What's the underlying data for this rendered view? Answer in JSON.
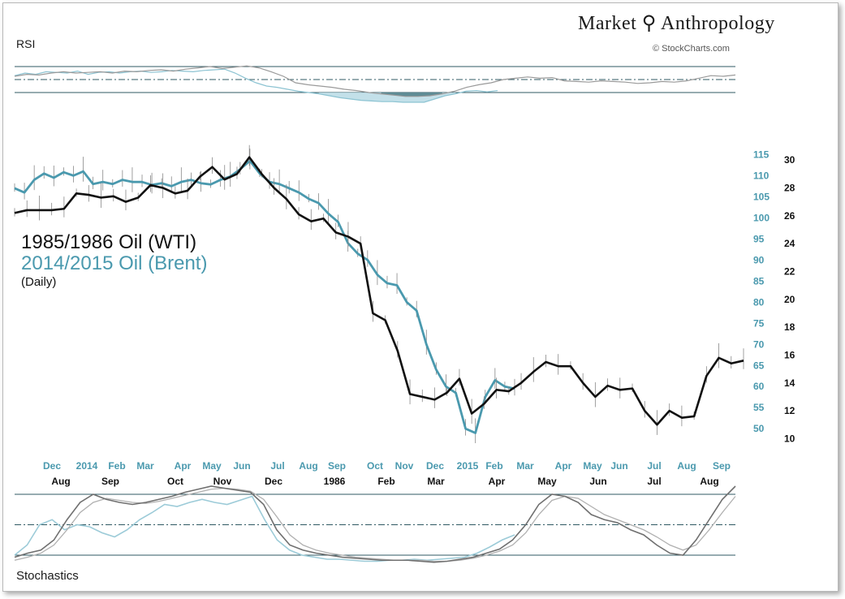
{
  "brand": {
    "title": "Market ⚲ Anthropology",
    "credit": "© StockCharts.com"
  },
  "labels": {
    "rsi": "RSI",
    "stochastics": "Stochastics"
  },
  "legend": {
    "line1": "1985/1986 Oil (WTI)",
    "line2": "2014/2015 Oil (Brent)",
    "line3": "(Daily)"
  },
  "colors": {
    "wti": "#111111",
    "brent": "#4a99ae",
    "rsi_fill_dark": "#4e7d86",
    "rsi_fill_light": "#b9dbe5"
  },
  "chart_data": {
    "type": "line",
    "series": [
      {
        "name": "1985/1986 Oil (WTI)",
        "axis": "right-black",
        "values": [
          26.2,
          26.4,
          26.4,
          26.4,
          26.5,
          27.6,
          27.5,
          27.3,
          27.4,
          27.0,
          27.3,
          28.2,
          28.0,
          27.6,
          27.8,
          28.8,
          29.5,
          28.6,
          29.0,
          30.2,
          29.0,
          28.0,
          27.2,
          26.1,
          25.6,
          25.8,
          24.8,
          24.5,
          24.0,
          19.0,
          18.5,
          16.3,
          13.2,
          13.0,
          12.8,
          13.3,
          14.3,
          11.8,
          12.5,
          13.5,
          13.4,
          14.0,
          14.8,
          15.5,
          15.2,
          15.2,
          14.0,
          13.0,
          13.8,
          13.5,
          13.6,
          12.0,
          11.0,
          12.0,
          11.5,
          11.6,
          14.5,
          15.8,
          15.4,
          15.6
        ]
      },
      {
        "name": "2014/2015 Oil (Brent)",
        "axis": "right-blue",
        "values": [
          107.0,
          106.0,
          109.0,
          110.5,
          109.5,
          110.8,
          110.0,
          111.0,
          108.0,
          108.5,
          108.0,
          109.0,
          108.5,
          108.5,
          107.8,
          108.2,
          107.5,
          108.5,
          109.0,
          108.2,
          107.9,
          109.0,
          109.8,
          111.5,
          113.5,
          110.5,
          108.5,
          108.0,
          107.0,
          106.0,
          104.5,
          103.5,
          101.0,
          99.0,
          94.0,
          91.5,
          90.0,
          86.5,
          84.5,
          84.0,
          80.0,
          78.0,
          70.0,
          64.0,
          60.0,
          58.5,
          50.0,
          49.0,
          57.5,
          61.5,
          60.0,
          59.5
        ]
      }
    ],
    "x_ticks_top": [
      "Dec",
      "2014",
      "Feb",
      "Mar",
      "Apr",
      "May",
      "Jun",
      "Jul",
      "Aug",
      "Sep",
      "Oct",
      "Nov",
      "Dec",
      "2015",
      "Feb",
      "Mar",
      "Apr",
      "May",
      "Jun",
      "Jul",
      "Aug",
      "Sep"
    ],
    "x_ticks_bottom": [
      "Aug",
      "Sep",
      "Oct",
      "Nov",
      "Dec",
      "1986",
      "Feb",
      "Mar",
      "Apr",
      "May",
      "Jun",
      "Jul",
      "Aug"
    ],
    "y_right_blue": {
      "ticks": [
        50,
        55,
        60,
        65,
        70,
        75,
        80,
        85,
        90,
        95,
        100,
        105,
        110,
        115
      ],
      "ylim": [
        46,
        117
      ]
    },
    "y_right_black": {
      "ticks": [
        10,
        12,
        14,
        16,
        18,
        20,
        22,
        24,
        26,
        28,
        30
      ],
      "ylim": [
        9.5,
        31
      ]
    },
    "rsi": {
      "ylim": [
        0,
        100
      ],
      "bands": [
        30,
        50,
        70
      ],
      "wti": [
        55,
        58,
        57,
        60,
        62,
        60,
        61,
        62,
        60,
        63,
        62,
        64,
        65,
        63,
        66,
        68,
        70,
        67,
        69,
        71,
        68,
        62,
        55,
        45,
        42,
        40,
        38,
        35,
        33,
        30,
        28,
        26,
        24,
        24,
        25,
        28,
        32,
        38,
        42,
        45,
        50,
        52,
        54,
        52,
        53,
        48,
        47,
        46,
        48,
        47,
        46,
        44,
        45,
        47,
        46,
        48,
        52,
        56,
        55,
        57
      ],
      "brent": [
        56,
        60,
        58,
        62,
        61,
        60,
        63,
        58,
        61,
        62,
        60,
        62,
        63,
        61,
        62,
        64,
        63,
        62,
        64,
        65,
        66,
        60,
        52,
        45,
        40,
        38,
        35,
        32,
        30,
        28,
        25,
        22,
        20,
        18,
        17,
        16,
        16,
        15,
        15,
        15,
        20,
        25,
        28,
        32,
        33,
        31,
        33
      ]
    },
    "stochastics": {
      "ylim": [
        0,
        100
      ],
      "bands": [
        20,
        50,
        80
      ],
      "wti_k": [
        18,
        22,
        25,
        35,
        55,
        72,
        80,
        75,
        72,
        70,
        72,
        75,
        78,
        82,
        85,
        88,
        86,
        84,
        82,
        70,
        45,
        30,
        25,
        22,
        20,
        18,
        17,
        16,
        15,
        15,
        15,
        14,
        13,
        14,
        16,
        18,
        22,
        26,
        35,
        50,
        70,
        80,
        78,
        72,
        60,
        55,
        52,
        45,
        40,
        30,
        22,
        20,
        35,
        55,
        75,
        88
      ],
      "wti_d": [
        15,
        18,
        22,
        30,
        45,
        62,
        72,
        76,
        74,
        72,
        71,
        73,
        76,
        79,
        82,
        85,
        86,
        85,
        83,
        75,
        58,
        40,
        30,
        25,
        22,
        20,
        18,
        17,
        16,
        15,
        15,
        15,
        14,
        14,
        15,
        17,
        20,
        24,
        30,
        42,
        60,
        74,
        78,
        76,
        68,
        60,
        55,
        50,
        45,
        38,
        30,
        25,
        30,
        45,
        62,
        78
      ],
      "brent": [
        20,
        30,
        50,
        55,
        45,
        50,
        48,
        42,
        38,
        45,
        55,
        62,
        70,
        68,
        72,
        75,
        72,
        70,
        74,
        78,
        55,
        35,
        25,
        20,
        18,
        16,
        16,
        15,
        14,
        14,
        15,
        15,
        16,
        15,
        16,
        17,
        18,
        22,
        28,
        35,
        40
      ]
    }
  }
}
